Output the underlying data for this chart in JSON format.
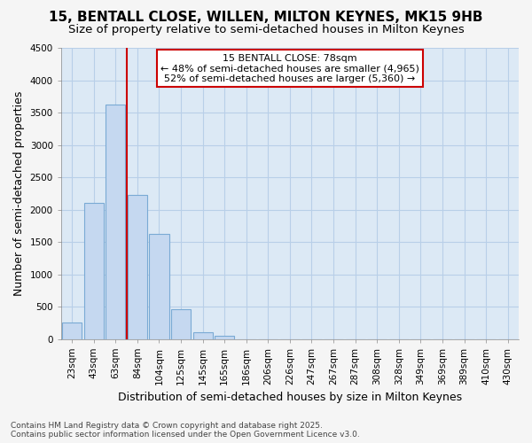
{
  "title1": "15, BENTALL CLOSE, WILLEN, MILTON KEYNES, MK15 9HB",
  "title2": "Size of property relative to semi-detached houses in Milton Keynes",
  "xlabel": "Distribution of semi-detached houses by size in Milton Keynes",
  "ylabel": "Number of semi-detached properties",
  "categories": [
    "23sqm",
    "43sqm",
    "63sqm",
    "84sqm",
    "104sqm",
    "125sqm",
    "145sqm",
    "165sqm",
    "186sqm",
    "206sqm",
    "226sqm",
    "247sqm",
    "267sqm",
    "287sqm",
    "308sqm",
    "328sqm",
    "349sqm",
    "369sqm",
    "389sqm",
    "410sqm",
    "430sqm"
  ],
  "values": [
    250,
    2100,
    3620,
    2220,
    1620,
    460,
    100,
    50,
    0,
    0,
    0,
    0,
    0,
    0,
    0,
    0,
    0,
    0,
    0,
    0,
    0
  ],
  "bar_color": "#c5d8f0",
  "bar_edge_color": "#7aaad4",
  "vline_color": "#cc0000",
  "annotation_title": "15 BENTALL CLOSE: 78sqm",
  "annotation_line1": "← 48% of semi-detached houses are smaller (4,965)",
  "annotation_line2": "52% of semi-detached houses are larger (5,360) →",
  "annotation_box_facecolor": "#ffffff",
  "annotation_box_edgecolor": "#cc0000",
  "ylim": [
    0,
    4500
  ],
  "yticks": [
    0,
    500,
    1000,
    1500,
    2000,
    2500,
    3000,
    3500,
    4000,
    4500
  ],
  "footer1": "Contains HM Land Registry data © Crown copyright and database right 2025.",
  "footer2": "Contains public sector information licensed under the Open Government Licence v3.0.",
  "fig_bg_color": "#f5f5f5",
  "plot_bg_color": "#dce9f5",
  "grid_color": "#b8cfe8",
  "title_fontsize": 11,
  "subtitle_fontsize": 9.5,
  "axis_label_fontsize": 9,
  "tick_fontsize": 7.5,
  "annotation_fontsize": 8,
  "footer_fontsize": 6.5
}
